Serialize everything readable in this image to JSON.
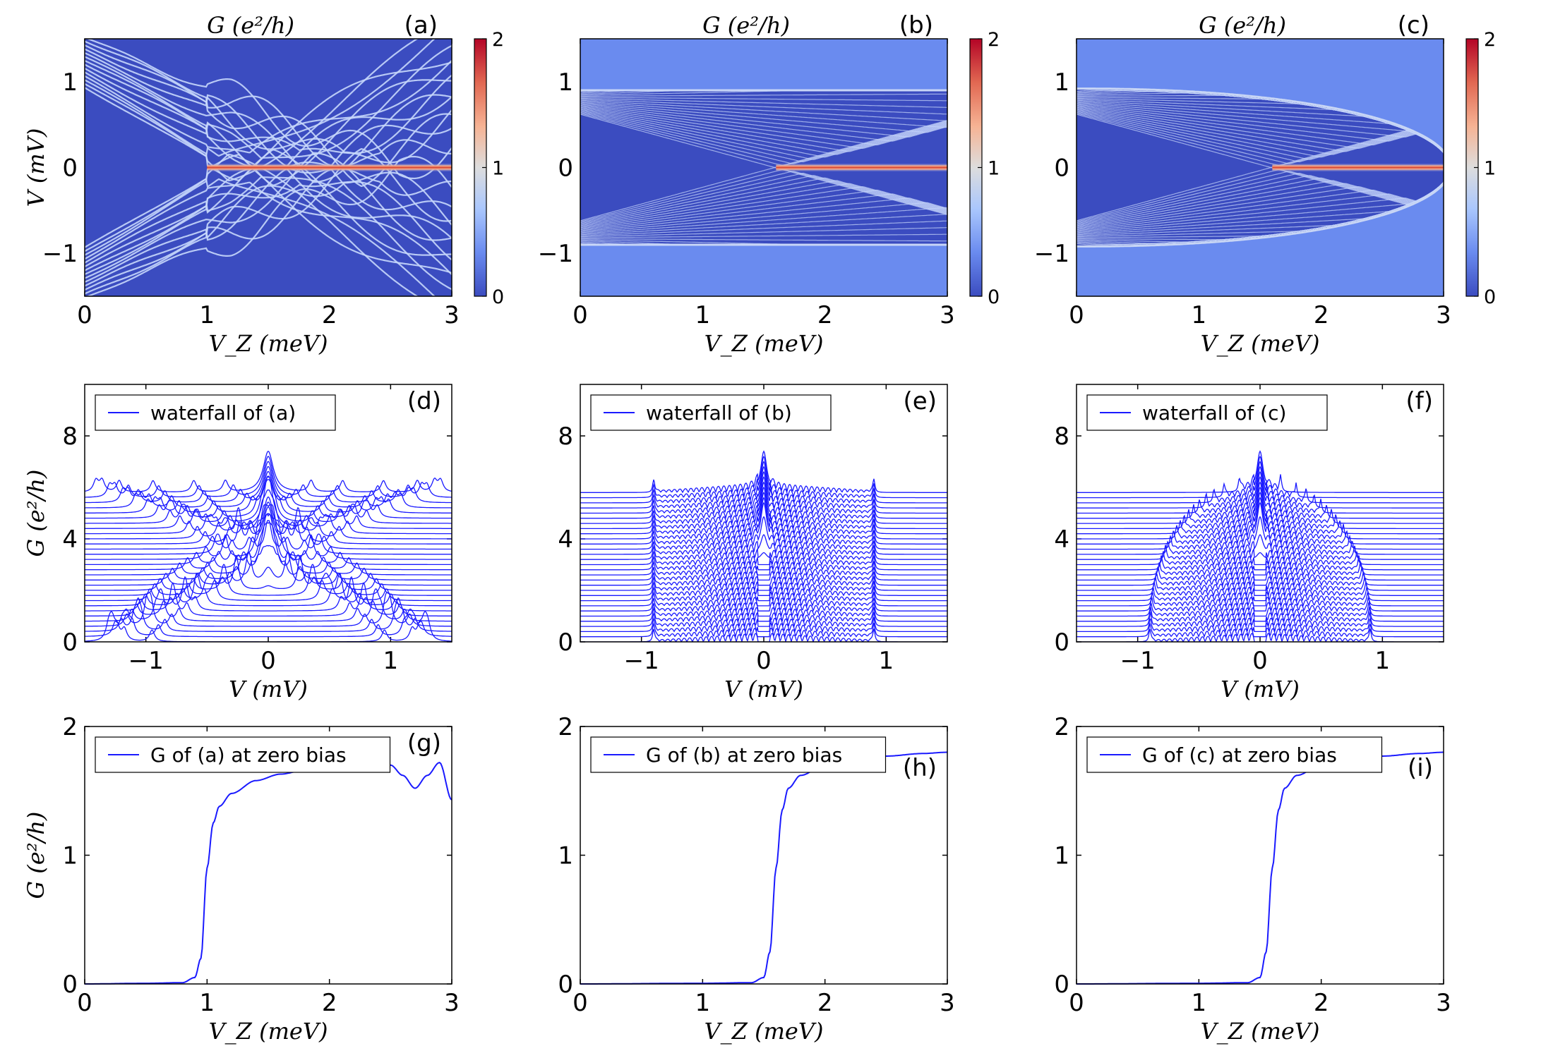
{
  "colors": {
    "line": "#1a1aff",
    "cmap": [
      "#3b4cc0",
      "#6a8bef",
      "#aac7fd",
      "#dddddd",
      "#f6b394",
      "#e16852",
      "#b40426"
    ]
  },
  "chart_data": [
    {
      "id": "a",
      "type": "heatmap",
      "panel_label": "(a)",
      "title": "G (e²/h)",
      "xlabel": "V_Z (meV)",
      "ylabel": "V (mV)",
      "xlim": [
        0,
        3
      ],
      "ylim": [
        -1.5,
        1.5
      ],
      "xticks": [
        "0",
        "1",
        "2",
        "3"
      ],
      "yticks": [
        "−1",
        "0",
        "1"
      ],
      "colorbar": {
        "range": [
          0,
          2
        ],
        "ticks": [
          "0",
          "1",
          "2"
        ]
      },
      "gap_at_zero_field": 0.93,
      "zero_mode_onset": 1.0
    },
    {
      "id": "b",
      "type": "heatmap",
      "panel_label": "(b)",
      "title": "G (e²/h)",
      "xlabel": "V_Z (meV)",
      "ylabel": "",
      "xlim": [
        0,
        3
      ],
      "ylim": [
        -1.5,
        1.5
      ],
      "xticks": [
        "0",
        "1",
        "2",
        "3"
      ],
      "yticks": [
        "−1",
        "0",
        "1"
      ],
      "colorbar": {
        "range": [
          0,
          2
        ],
        "ticks": [
          "0",
          "1",
          "2"
        ]
      },
      "gap_at_zero_field": 0.9,
      "zero_mode_onset": 1.6
    },
    {
      "id": "c",
      "type": "heatmap",
      "panel_label": "(c)",
      "title": "G (e²/h)",
      "xlabel": "V_Z (meV)",
      "ylabel": "",
      "xlim": [
        0,
        3
      ],
      "ylim": [
        -1.5,
        1.5
      ],
      "xticks": [
        "0",
        "1",
        "2",
        "3"
      ],
      "yticks": [
        "−1",
        "0",
        "1"
      ],
      "colorbar": {
        "range": [
          0,
          2
        ],
        "ticks": [
          "0",
          "1",
          "2"
        ]
      },
      "gap_at_zero_field": 0.9,
      "zero_mode_onset": 1.6
    },
    {
      "id": "d",
      "type": "line",
      "panel_label": "(d)",
      "legend": "waterfall of (a)",
      "xlabel": "V (mV)",
      "ylabel": "G (e²/h)",
      "xlim": [
        -1.5,
        1.5
      ],
      "ylim": [
        0,
        10
      ],
      "xticks": [
        "−1",
        "0",
        "1"
      ],
      "yticks": [
        "0",
        "4",
        "8"
      ],
      "n_curves": 30,
      "curve_offset": 0.2,
      "zero_bias_peak": 7.5
    },
    {
      "id": "e",
      "type": "line",
      "panel_label": "(e)",
      "legend": "waterfall of (b)",
      "xlabel": "V (mV)",
      "ylabel": "",
      "xlim": [
        -1.5,
        1.5
      ],
      "ylim": [
        0,
        10
      ],
      "xticks": [
        "−1",
        "0",
        "1"
      ],
      "yticks": [
        "0",
        "4",
        "8"
      ],
      "n_curves": 30,
      "curve_offset": 0.2,
      "zero_bias_peak": 7.6
    },
    {
      "id": "f",
      "type": "line",
      "panel_label": "(f)",
      "legend": "waterfall of (c)",
      "xlabel": "V (mV)",
      "ylabel": "",
      "xlim": [
        -1.5,
        1.5
      ],
      "ylim": [
        0,
        10
      ],
      "xticks": [
        "−1",
        "0",
        "1"
      ],
      "yticks": [
        "0",
        "4",
        "8"
      ],
      "n_curves": 30,
      "curve_offset": 0.2,
      "zero_bias_peak": 7.6
    },
    {
      "id": "g",
      "type": "line",
      "panel_label": "(g)",
      "legend": "G of (a) at zero bias",
      "xlabel": "V_Z (meV)",
      "ylabel": "G (e²/h)",
      "xlim": [
        0,
        3
      ],
      "ylim": [
        0,
        2
      ],
      "xticks": [
        "0",
        "1",
        "2",
        "3"
      ],
      "yticks": [
        "0",
        "1",
        "2"
      ],
      "x": [
        0,
        0.5,
        0.8,
        0.9,
        0.95,
        1.0,
        1.05,
        1.1,
        1.2,
        1.4,
        1.6,
        1.8,
        2.0,
        2.1,
        2.2,
        2.3,
        2.4,
        2.5,
        2.6,
        2.7,
        2.8,
        2.9,
        3.0
      ],
      "y": [
        0.0,
        0.005,
        0.01,
        0.05,
        0.2,
        0.9,
        1.25,
        1.38,
        1.48,
        1.58,
        1.63,
        1.66,
        1.68,
        1.7,
        1.67,
        1.65,
        1.69,
        1.7,
        1.62,
        1.52,
        1.62,
        1.72,
        1.43
      ]
    },
    {
      "id": "h",
      "type": "line",
      "panel_label": "(h)",
      "legend": "G of (b) at zero bias",
      "xlabel": "V_Z (meV)",
      "ylabel": "",
      "xlim": [
        0,
        3
      ],
      "ylim": [
        0,
        2
      ],
      "xticks": [
        "0",
        "1",
        "2",
        "3"
      ],
      "yticks": [
        "0",
        "1",
        "2"
      ],
      "x": [
        0,
        1.0,
        1.4,
        1.5,
        1.55,
        1.6,
        1.65,
        1.7,
        1.8,
        2.0,
        2.2,
        2.5,
        2.8,
        3.0
      ],
      "y": [
        0.0,
        0.005,
        0.01,
        0.05,
        0.25,
        0.9,
        1.35,
        1.52,
        1.62,
        1.7,
        1.74,
        1.77,
        1.79,
        1.8
      ]
    },
    {
      "id": "i",
      "type": "line",
      "panel_label": "(i)",
      "legend": "G of (c) at zero bias",
      "xlabel": "V_Z (meV)",
      "ylabel": "",
      "xlim": [
        0,
        3
      ],
      "ylim": [
        0,
        2
      ],
      "xticks": [
        "0",
        "1",
        "2",
        "3"
      ],
      "yticks": [
        "0",
        "1",
        "2"
      ],
      "x": [
        0,
        1.0,
        1.4,
        1.5,
        1.55,
        1.6,
        1.65,
        1.7,
        1.8,
        2.0,
        2.2,
        2.5,
        2.8,
        3.0
      ],
      "y": [
        0.0,
        0.005,
        0.01,
        0.05,
        0.25,
        0.9,
        1.35,
        1.52,
        1.62,
        1.7,
        1.74,
        1.77,
        1.79,
        1.8
      ]
    }
  ]
}
